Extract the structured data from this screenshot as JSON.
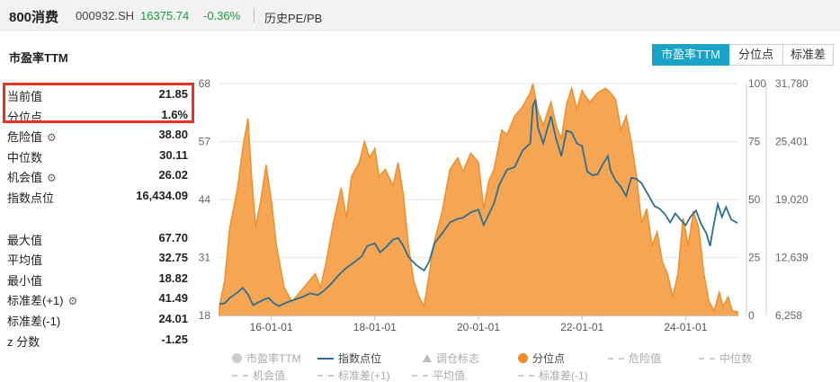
{
  "header": {
    "name": "800消费",
    "code": "000932.SH",
    "price": "16375.74",
    "change_pct": "-0.36%",
    "crumb": "历史PE/PB"
  },
  "section_title": "市盈率TTM",
  "tabs": [
    "市盈率TTM",
    "分位点",
    "标准差"
  ],
  "stats": {
    "group1": [
      {
        "label": "当前值",
        "value": "21.85",
        "gear": false
      },
      {
        "label": "分位点",
        "value": "1.6%",
        "gear": false
      },
      {
        "label": "危险值",
        "value": "38.80",
        "gear": true
      },
      {
        "label": "中位数",
        "value": "30.11",
        "gear": false
      },
      {
        "label": "机会值",
        "value": "26.02",
        "gear": true
      },
      {
        "label": "指数点位",
        "value": "16,434.09",
        "gear": false
      }
    ],
    "group2": [
      {
        "label": "最大值",
        "value": "67.70",
        "gear": false
      },
      {
        "label": "平均值",
        "value": "32.75",
        "gear": false
      },
      {
        "label": "最小值",
        "value": "18.82",
        "gear": false
      },
      {
        "label": "标准差(+1)",
        "value": "41.49",
        "gear": true
      },
      {
        "label": "标准差(-1)",
        "value": "24.01",
        "gear": false
      },
      {
        "label": "z 分数",
        "value": "-1.25",
        "gear": false
      }
    ]
  },
  "colors": {
    "area": "#f5a14a",
    "area_stroke": "#ee8f2c",
    "index_line": "#2b6e96",
    "accent": "#1aa3c8",
    "highlight": "#e83222"
  },
  "legend": [
    {
      "label": "市盈率TTM",
      "symbol": "dot",
      "color": "#cccccc",
      "dim": true
    },
    {
      "label": "指数点位",
      "symbol": "line",
      "color": "#2b6e96",
      "dim": false
    },
    {
      "label": "调仓标志",
      "symbol": "triangle",
      "color": "#bbbbbb",
      "dim": true
    },
    {
      "label": "分位点",
      "symbol": "dot",
      "color": "#f08c26",
      "dim": false
    },
    {
      "label": "危险值",
      "symbol": "dash",
      "color": "#cccccc",
      "dim": true
    },
    {
      "label": "中位数",
      "symbol": "dash",
      "color": "#cccccc",
      "dim": true
    },
    {
      "label": "机会值",
      "symbol": "dash",
      "color": "#cccccc",
      "dim": true
    },
    {
      "label": "标准差(+1)",
      "symbol": "dash",
      "color": "#cccccc",
      "dim": true
    },
    {
      "label": "平均值",
      "symbol": "dash",
      "color": "#cccccc",
      "dim": true
    },
    {
      "label": "标准差(-1)",
      "symbol": "dash",
      "color": "#cccccc",
      "dim": true
    }
  ],
  "chart_data": {
    "type": "area",
    "x_ticks": [
      "16-01-01",
      "18-01-01",
      "20-01-01",
      "22-01-01",
      "24-01-01"
    ],
    "x_tick_years": [
      2016,
      2018,
      2020,
      2022,
      2024
    ],
    "xlim": [
      2015.0,
      2025.0
    ],
    "left_axis": {
      "ticks": [
        "18",
        "31",
        "44",
        "57",
        "68"
      ],
      "ylim": [
        18,
        68
      ]
    },
    "mid_axis": {
      "ticks": [
        "0",
        "25",
        "50",
        "75",
        "100"
      ],
      "ylim": [
        0,
        100
      ]
    },
    "right_axis": {
      "ticks": [
        "6,258",
        "12,639",
        "19,020",
        "25,401",
        "31,780"
      ],
      "ylim": [
        6258,
        31780
      ]
    },
    "grid": true,
    "series": [
      {
        "name": "分位点",
        "axis": "mid",
        "type": "area",
        "points": [
          [
            2015.0,
            4
          ],
          [
            2015.1,
            15
          ],
          [
            2015.2,
            38
          ],
          [
            2015.35,
            55
          ],
          [
            2015.45,
            72
          ],
          [
            2015.55,
            85
          ],
          [
            2015.62,
            60
          ],
          [
            2015.7,
            38
          ],
          [
            2015.8,
            50
          ],
          [
            2015.9,
            65
          ],
          [
            2016.0,
            50
          ],
          [
            2016.1,
            30
          ],
          [
            2016.25,
            12
          ],
          [
            2016.4,
            6
          ],
          [
            2016.55,
            10
          ],
          [
            2016.7,
            14
          ],
          [
            2016.85,
            18
          ],
          [
            2016.95,
            12
          ],
          [
            2017.05,
            22
          ],
          [
            2017.2,
            40
          ],
          [
            2017.35,
            55
          ],
          [
            2017.45,
            42
          ],
          [
            2017.55,
            60
          ],
          [
            2017.7,
            66
          ],
          [
            2017.8,
            75
          ],
          [
            2017.9,
            68
          ],
          [
            2018.0,
            72
          ],
          [
            2018.08,
            60
          ],
          [
            2018.2,
            63
          ],
          [
            2018.35,
            56
          ],
          [
            2018.45,
            66
          ],
          [
            2018.55,
            52
          ],
          [
            2018.65,
            30
          ],
          [
            2018.75,
            15
          ],
          [
            2018.85,
            8
          ],
          [
            2018.95,
            4
          ],
          [
            2019.05,
            18
          ],
          [
            2019.15,
            32
          ],
          [
            2019.3,
            45
          ],
          [
            2019.45,
            63
          ],
          [
            2019.6,
            68
          ],
          [
            2019.7,
            62
          ],
          [
            2019.85,
            70
          ],
          [
            2020.0,
            66
          ],
          [
            2020.1,
            46
          ],
          [
            2020.2,
            58
          ],
          [
            2020.3,
            63
          ],
          [
            2020.45,
            80
          ],
          [
            2020.55,
            78
          ],
          [
            2020.7,
            86
          ],
          [
            2020.85,
            90
          ],
          [
            2021.0,
            96
          ],
          [
            2021.05,
            100
          ],
          [
            2021.15,
            88
          ],
          [
            2021.25,
            82
          ],
          [
            2021.4,
            92
          ],
          [
            2021.5,
            82
          ],
          [
            2021.6,
            76
          ],
          [
            2021.7,
            91
          ],
          [
            2021.8,
            98
          ],
          [
            2021.9,
            89
          ],
          [
            2022.0,
            97
          ],
          [
            2022.05,
            95
          ],
          [
            2022.15,
            92
          ],
          [
            2022.3,
            96
          ],
          [
            2022.45,
            98
          ],
          [
            2022.55,
            96
          ],
          [
            2022.65,
            93
          ],
          [
            2022.75,
            80
          ],
          [
            2022.85,
            86
          ],
          [
            2022.95,
            75
          ],
          [
            2023.05,
            60
          ],
          [
            2023.15,
            40
          ],
          [
            2023.25,
            46
          ],
          [
            2023.35,
            30
          ],
          [
            2023.45,
            36
          ],
          [
            2023.55,
            23
          ],
          [
            2023.65,
            18
          ],
          [
            2023.75,
            8
          ],
          [
            2023.85,
            18
          ],
          [
            2023.95,
            42
          ],
          [
            2024.05,
            30
          ],
          [
            2024.15,
            45
          ],
          [
            2024.25,
            38
          ],
          [
            2024.35,
            18
          ],
          [
            2024.45,
            6
          ],
          [
            2024.55,
            2
          ],
          [
            2024.65,
            10
          ],
          [
            2024.72,
            4
          ],
          [
            2024.82,
            8
          ],
          [
            2024.9,
            2
          ],
          [
            2025.0,
            1.6
          ]
        ]
      },
      {
        "name": "指数点位",
        "axis": "right",
        "type": "line",
        "points": [
          [
            2015.0,
            7500
          ],
          [
            2015.1,
            7600
          ],
          [
            2015.2,
            8200
          ],
          [
            2015.35,
            8800
          ],
          [
            2015.45,
            9300
          ],
          [
            2015.55,
            8600
          ],
          [
            2015.65,
            7400
          ],
          [
            2015.75,
            7700
          ],
          [
            2015.85,
            8000
          ],
          [
            2015.95,
            8200
          ],
          [
            2016.05,
            7600
          ],
          [
            2016.15,
            7300
          ],
          [
            2016.3,
            7700
          ],
          [
            2016.45,
            8000
          ],
          [
            2016.6,
            8300
          ],
          [
            2016.75,
            8700
          ],
          [
            2016.9,
            8500
          ],
          [
            2017.0,
            8900
          ],
          [
            2017.15,
            9700
          ],
          [
            2017.3,
            10700
          ],
          [
            2017.45,
            11500
          ],
          [
            2017.6,
            12100
          ],
          [
            2017.75,
            12800
          ],
          [
            2017.85,
            13900
          ],
          [
            2018.0,
            14200
          ],
          [
            2018.1,
            13200
          ],
          [
            2018.2,
            13700
          ],
          [
            2018.35,
            14600
          ],
          [
            2018.45,
            14800
          ],
          [
            2018.55,
            13900
          ],
          [
            2018.65,
            12700
          ],
          [
            2018.8,
            11800
          ],
          [
            2018.95,
            11200
          ],
          [
            2019.05,
            12200
          ],
          [
            2019.15,
            14200
          ],
          [
            2019.3,
            15300
          ],
          [
            2019.45,
            16500
          ],
          [
            2019.6,
            16900
          ],
          [
            2019.7,
            17000
          ],
          [
            2019.85,
            17600
          ],
          [
            2020.0,
            17900
          ],
          [
            2020.1,
            16200
          ],
          [
            2020.2,
            17400
          ],
          [
            2020.3,
            18600
          ],
          [
            2020.4,
            20600
          ],
          [
            2020.55,
            22300
          ],
          [
            2020.7,
            22600
          ],
          [
            2020.85,
            24400
          ],
          [
            2021.0,
            25200
          ],
          [
            2021.05,
            29300
          ],
          [
            2021.1,
            30000
          ],
          [
            2021.15,
            26900
          ],
          [
            2021.25,
            25200
          ],
          [
            2021.4,
            28200
          ],
          [
            2021.5,
            25700
          ],
          [
            2021.6,
            23800
          ],
          [
            2021.7,
            26600
          ],
          [
            2021.8,
            26400
          ],
          [
            2021.9,
            25200
          ],
          [
            2022.0,
            24900
          ],
          [
            2022.1,
            22100
          ],
          [
            2022.2,
            21700
          ],
          [
            2022.3,
            21800
          ],
          [
            2022.4,
            22900
          ],
          [
            2022.5,
            23800
          ],
          [
            2022.55,
            22200
          ],
          [
            2022.65,
            21100
          ],
          [
            2022.75,
            20400
          ],
          [
            2022.85,
            19400
          ],
          [
            2022.95,
            21400
          ],
          [
            2023.05,
            21300
          ],
          [
            2023.15,
            20800
          ],
          [
            2023.3,
            19300
          ],
          [
            2023.4,
            18300
          ],
          [
            2023.5,
            18000
          ],
          [
            2023.6,
            17400
          ],
          [
            2023.7,
            16500
          ],
          [
            2023.8,
            17500
          ],
          [
            2023.9,
            16800
          ],
          [
            2024.0,
            16200
          ],
          [
            2024.1,
            17200
          ],
          [
            2024.2,
            17800
          ],
          [
            2024.3,
            16300
          ],
          [
            2024.4,
            15300
          ],
          [
            2024.47,
            13900
          ],
          [
            2024.55,
            16500
          ],
          [
            2024.62,
            18500
          ],
          [
            2024.7,
            17100
          ],
          [
            2024.78,
            18200
          ],
          [
            2024.88,
            16800
          ],
          [
            2025.0,
            16434
          ]
        ]
      }
    ]
  }
}
